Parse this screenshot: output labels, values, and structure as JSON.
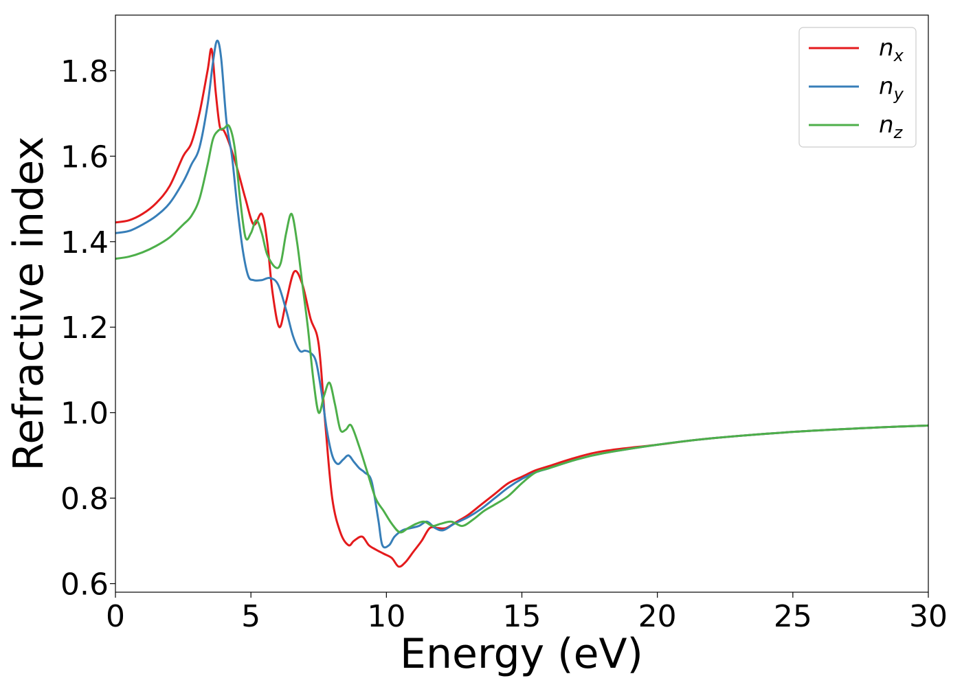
{
  "chart_data": {
    "type": "line",
    "title": "",
    "xlabel": "Energy (eV)",
    "ylabel": "Refractive index",
    "xlim": [
      0,
      30
    ],
    "ylim": [
      0.58,
      1.93
    ],
    "xticks": [
      "0",
      "5",
      "10",
      "15",
      "20",
      "25",
      "30"
    ],
    "xtick_values": [
      0,
      5,
      10,
      15,
      20,
      25,
      30
    ],
    "yticks": [
      "0.6",
      "0.8",
      "1.0",
      "1.2",
      "1.4",
      "1.6",
      "1.8"
    ],
    "ytick_values": [
      0.6,
      0.8,
      1.0,
      1.2,
      1.4,
      1.6,
      1.8
    ],
    "grid": false,
    "legend_position": "top-right",
    "series": [
      {
        "name": "n",
        "subscript": "x",
        "color": "#e41a1c",
        "x": [
          0,
          0.5,
          1.0,
          1.5,
          2.0,
          2.5,
          2.8,
          3.1,
          3.4,
          3.55,
          3.7,
          3.85,
          4.0,
          4.2,
          4.5,
          4.8,
          5.1,
          5.4,
          5.6,
          5.8,
          6.05,
          6.3,
          6.6,
          6.9,
          7.2,
          7.5,
          7.75,
          8.0,
          8.3,
          8.6,
          8.8,
          9.1,
          9.35,
          9.6,
          9.9,
          10.2,
          10.45,
          10.7,
          11.0,
          11.3,
          11.6,
          11.9,
          12.2,
          12.6,
          13.0,
          13.5,
          14.0,
          14.5,
          15.0,
          15.5,
          16.0,
          17.0,
          18.0,
          20.0,
          22.0,
          25.0,
          28.0,
          30.0
        ],
        "y": [
          1.445,
          1.45,
          1.465,
          1.49,
          1.53,
          1.6,
          1.63,
          1.7,
          1.8,
          1.85,
          1.75,
          1.67,
          1.66,
          1.63,
          1.57,
          1.5,
          1.44,
          1.465,
          1.4,
          1.28,
          1.2,
          1.26,
          1.33,
          1.3,
          1.22,
          1.16,
          0.97,
          0.8,
          0.72,
          0.69,
          0.7,
          0.71,
          0.69,
          0.68,
          0.67,
          0.66,
          0.64,
          0.65,
          0.675,
          0.7,
          0.73,
          0.73,
          0.73,
          0.745,
          0.76,
          0.785,
          0.81,
          0.835,
          0.85,
          0.865,
          0.875,
          0.895,
          0.91,
          0.925,
          0.94,
          0.955,
          0.965,
          0.97
        ]
      },
      {
        "name": "n",
        "subscript": "y",
        "color": "#377eb8",
        "x": [
          0,
          0.5,
          1.0,
          1.5,
          2.0,
          2.5,
          2.8,
          3.1,
          3.4,
          3.6,
          3.75,
          3.9,
          4.1,
          4.3,
          4.5,
          4.7,
          4.9,
          5.1,
          5.4,
          5.7,
          6.0,
          6.3,
          6.55,
          6.8,
          7.0,
          7.2,
          7.4,
          7.6,
          7.8,
          8.0,
          8.2,
          8.4,
          8.6,
          8.8,
          9.0,
          9.2,
          9.45,
          9.7,
          9.85,
          10.1,
          10.3,
          10.6,
          10.9,
          11.2,
          11.5,
          11.8,
          12.1,
          12.5,
          13.0,
          13.5,
          14.0,
          14.5,
          15.0,
          15.5,
          16.0,
          17.0,
          18.0,
          20.0,
          22.0,
          25.0,
          28.0,
          30.0
        ],
        "y": [
          1.42,
          1.425,
          1.44,
          1.46,
          1.49,
          1.54,
          1.58,
          1.62,
          1.72,
          1.82,
          1.87,
          1.83,
          1.68,
          1.6,
          1.48,
          1.38,
          1.32,
          1.31,
          1.31,
          1.315,
          1.3,
          1.24,
          1.18,
          1.145,
          1.145,
          1.14,
          1.12,
          1.05,
          0.96,
          0.9,
          0.88,
          0.89,
          0.9,
          0.885,
          0.87,
          0.86,
          0.84,
          0.75,
          0.69,
          0.69,
          0.71,
          0.725,
          0.73,
          0.735,
          0.745,
          0.73,
          0.725,
          0.74,
          0.755,
          0.775,
          0.8,
          0.825,
          0.845,
          0.86,
          0.87,
          0.89,
          0.905,
          0.925,
          0.94,
          0.955,
          0.965,
          0.97
        ]
      },
      {
        "name": "n",
        "subscript": "z",
        "color": "#4daf4a",
        "x": [
          0,
          0.5,
          1.0,
          1.5,
          2.0,
          2.5,
          2.8,
          3.1,
          3.4,
          3.6,
          3.8,
          4.0,
          4.2,
          4.4,
          4.6,
          4.8,
          5.0,
          5.2,
          5.4,
          5.6,
          5.9,
          6.1,
          6.3,
          6.5,
          6.7,
          6.9,
          7.1,
          7.3,
          7.5,
          7.7,
          7.9,
          8.1,
          8.3,
          8.5,
          8.7,
          9.0,
          9.3,
          9.6,
          9.9,
          10.2,
          10.5,
          10.8,
          11.1,
          11.4,
          11.7,
          12.0,
          12.4,
          12.8,
          13.2,
          13.6,
          14.0,
          14.5,
          15.0,
          15.5,
          16.0,
          17.0,
          18.0,
          20.0,
          22.0,
          25.0,
          28.0,
          30.0
        ],
        "y": [
          1.36,
          1.365,
          1.375,
          1.39,
          1.41,
          1.44,
          1.46,
          1.5,
          1.58,
          1.64,
          1.66,
          1.665,
          1.67,
          1.62,
          1.5,
          1.41,
          1.42,
          1.45,
          1.42,
          1.37,
          1.34,
          1.35,
          1.42,
          1.465,
          1.4,
          1.3,
          1.2,
          1.08,
          1.0,
          1.04,
          1.07,
          1.02,
          0.96,
          0.96,
          0.97,
          0.92,
          0.86,
          0.8,
          0.77,
          0.74,
          0.72,
          0.73,
          0.74,
          0.745,
          0.735,
          0.74,
          0.745,
          0.735,
          0.75,
          0.77,
          0.785,
          0.805,
          0.835,
          0.86,
          0.87,
          0.89,
          0.905,
          0.925,
          0.94,
          0.955,
          0.965,
          0.97
        ]
      }
    ]
  }
}
